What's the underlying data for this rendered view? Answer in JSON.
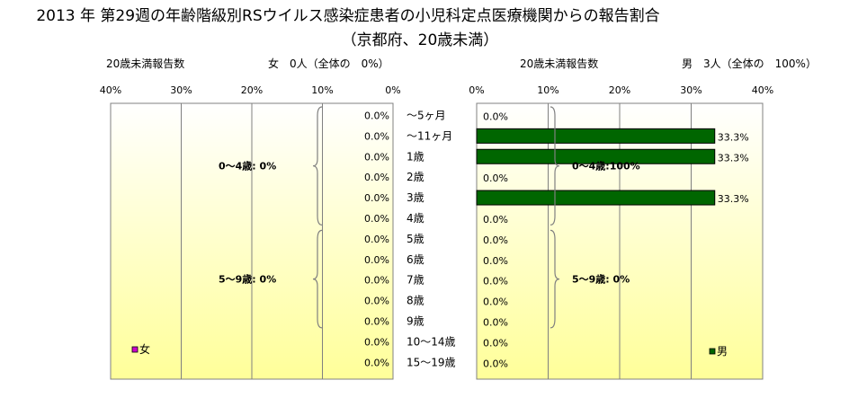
{
  "title_line1": "2013 年 第29週の年齢階級別RSウイルス感染症患者の小児科定点医療機関からの報告割合",
  "title_line2": "（京都府、20歳未満）",
  "left_header": {
    "label": "20歳未満報告数",
    "summary": "女　0人（全体の　0%）"
  },
  "right_header": {
    "label": "20歳未満報告数",
    "summary": "男　3人（全体の　100%）"
  },
  "age_labels": [
    "～5ヶ月",
    "～11ヶ月",
    "1歳",
    "2歳",
    "3歳",
    "4歳",
    "5歳",
    "6歳",
    "7歳",
    "8歳",
    "9歳",
    "10～14歳",
    "15～19歳"
  ],
  "colors": {
    "female": "#cc00cc",
    "male": "#006600",
    "bg_top": "#ffffff",
    "bg_bottom": "#ffff99"
  },
  "chart_data": [
    {
      "type": "bar",
      "orientation": "horizontal",
      "direction": "right-to-left",
      "categories": [
        "～5ヶ月",
        "～11ヶ月",
        "1歳",
        "2歳",
        "3歳",
        "4歳",
        "5歳",
        "6歳",
        "7歳",
        "8歳",
        "9歳",
        "10～14歳",
        "15～19歳"
      ],
      "series": [
        {
          "name": "女",
          "values": [
            0,
            0,
            0,
            0,
            0,
            0,
            0,
            0,
            0,
            0,
            0,
            0,
            0
          ]
        }
      ],
      "value_labels": [
        "0.0%",
        "0.0%",
        "0.0%",
        "0.0%",
        "0.0%",
        "0.0%",
        "0.0%",
        "0.0%",
        "0.0%",
        "0.0%",
        "0.0%",
        "0.0%",
        "0.0%"
      ],
      "xlim": [
        0,
        40
      ],
      "xticks": [
        "40%",
        "30%",
        "20%",
        "10%",
        "0%"
      ],
      "grid": true,
      "legend": "bottom-left",
      "group_annotations": [
        "0～4歳:  0%",
        "5～9歳:  0%"
      ]
    },
    {
      "type": "bar",
      "orientation": "horizontal",
      "direction": "left-to-right",
      "categories": [
        "～5ヶ月",
        "～11ヶ月",
        "1歳",
        "2歳",
        "3歳",
        "4歳",
        "5歳",
        "6歳",
        "7歳",
        "8歳",
        "9歳",
        "10～14歳",
        "15～19歳"
      ],
      "series": [
        {
          "name": "男",
          "values": [
            0,
            33.3,
            33.3,
            0,
            33.3,
            0,
            0,
            0,
            0,
            0,
            0,
            0,
            0
          ]
        }
      ],
      "value_labels": [
        "0.0%",
        "33.3%",
        "33.3%",
        "0.0%",
        "33.3%",
        "0.0%",
        "0.0%",
        "0.0%",
        "0.0%",
        "0.0%",
        "0.0%",
        "0.0%",
        "0.0%"
      ],
      "xlim": [
        0,
        40
      ],
      "xticks": [
        "0%",
        "10%",
        "20%",
        "30%",
        "40%"
      ],
      "grid": true,
      "legend": "bottom-right",
      "group_annotations": [
        "0～4歳:100%",
        "5～9歳:  0%"
      ]
    }
  ]
}
